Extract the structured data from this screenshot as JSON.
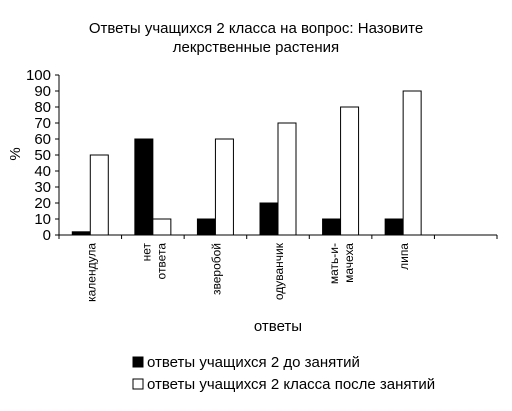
{
  "chart_data": {
    "type": "bar",
    "title_line1": "Ответы учащихся 2 класса на вопрос: Назовите",
    "title_line2": "лекрственные растения",
    "xlabel": "ответы",
    "ylabel": "%",
    "ylim": [
      0,
      100
    ],
    "yticks": [
      "0",
      "10",
      "20",
      "30",
      "40",
      "50",
      "60",
      "70",
      "80",
      "90",
      "100"
    ],
    "categories": [
      [
        "календула"
      ],
      [
        "нет",
        "ответа"
      ],
      [
        "зверобой"
      ],
      [
        "одуванчик"
      ],
      [
        "мать-и-",
        "мачеха"
      ],
      [
        "липа"
      ],
      [
        ""
      ]
    ],
    "series": [
      {
        "name": "ответы учащихся 2 до занятий",
        "color": "#000000",
        "values": [
          2,
          60,
          10,
          20,
          10,
          10,
          null
        ]
      },
      {
        "name": "ответы учащихся 2 класса после занятий",
        "color": "#ffffff",
        "values": [
          50,
          10,
          60,
          70,
          80,
          90,
          null
        ]
      }
    ],
    "legend_position": "bottom",
    "grid": false
  }
}
